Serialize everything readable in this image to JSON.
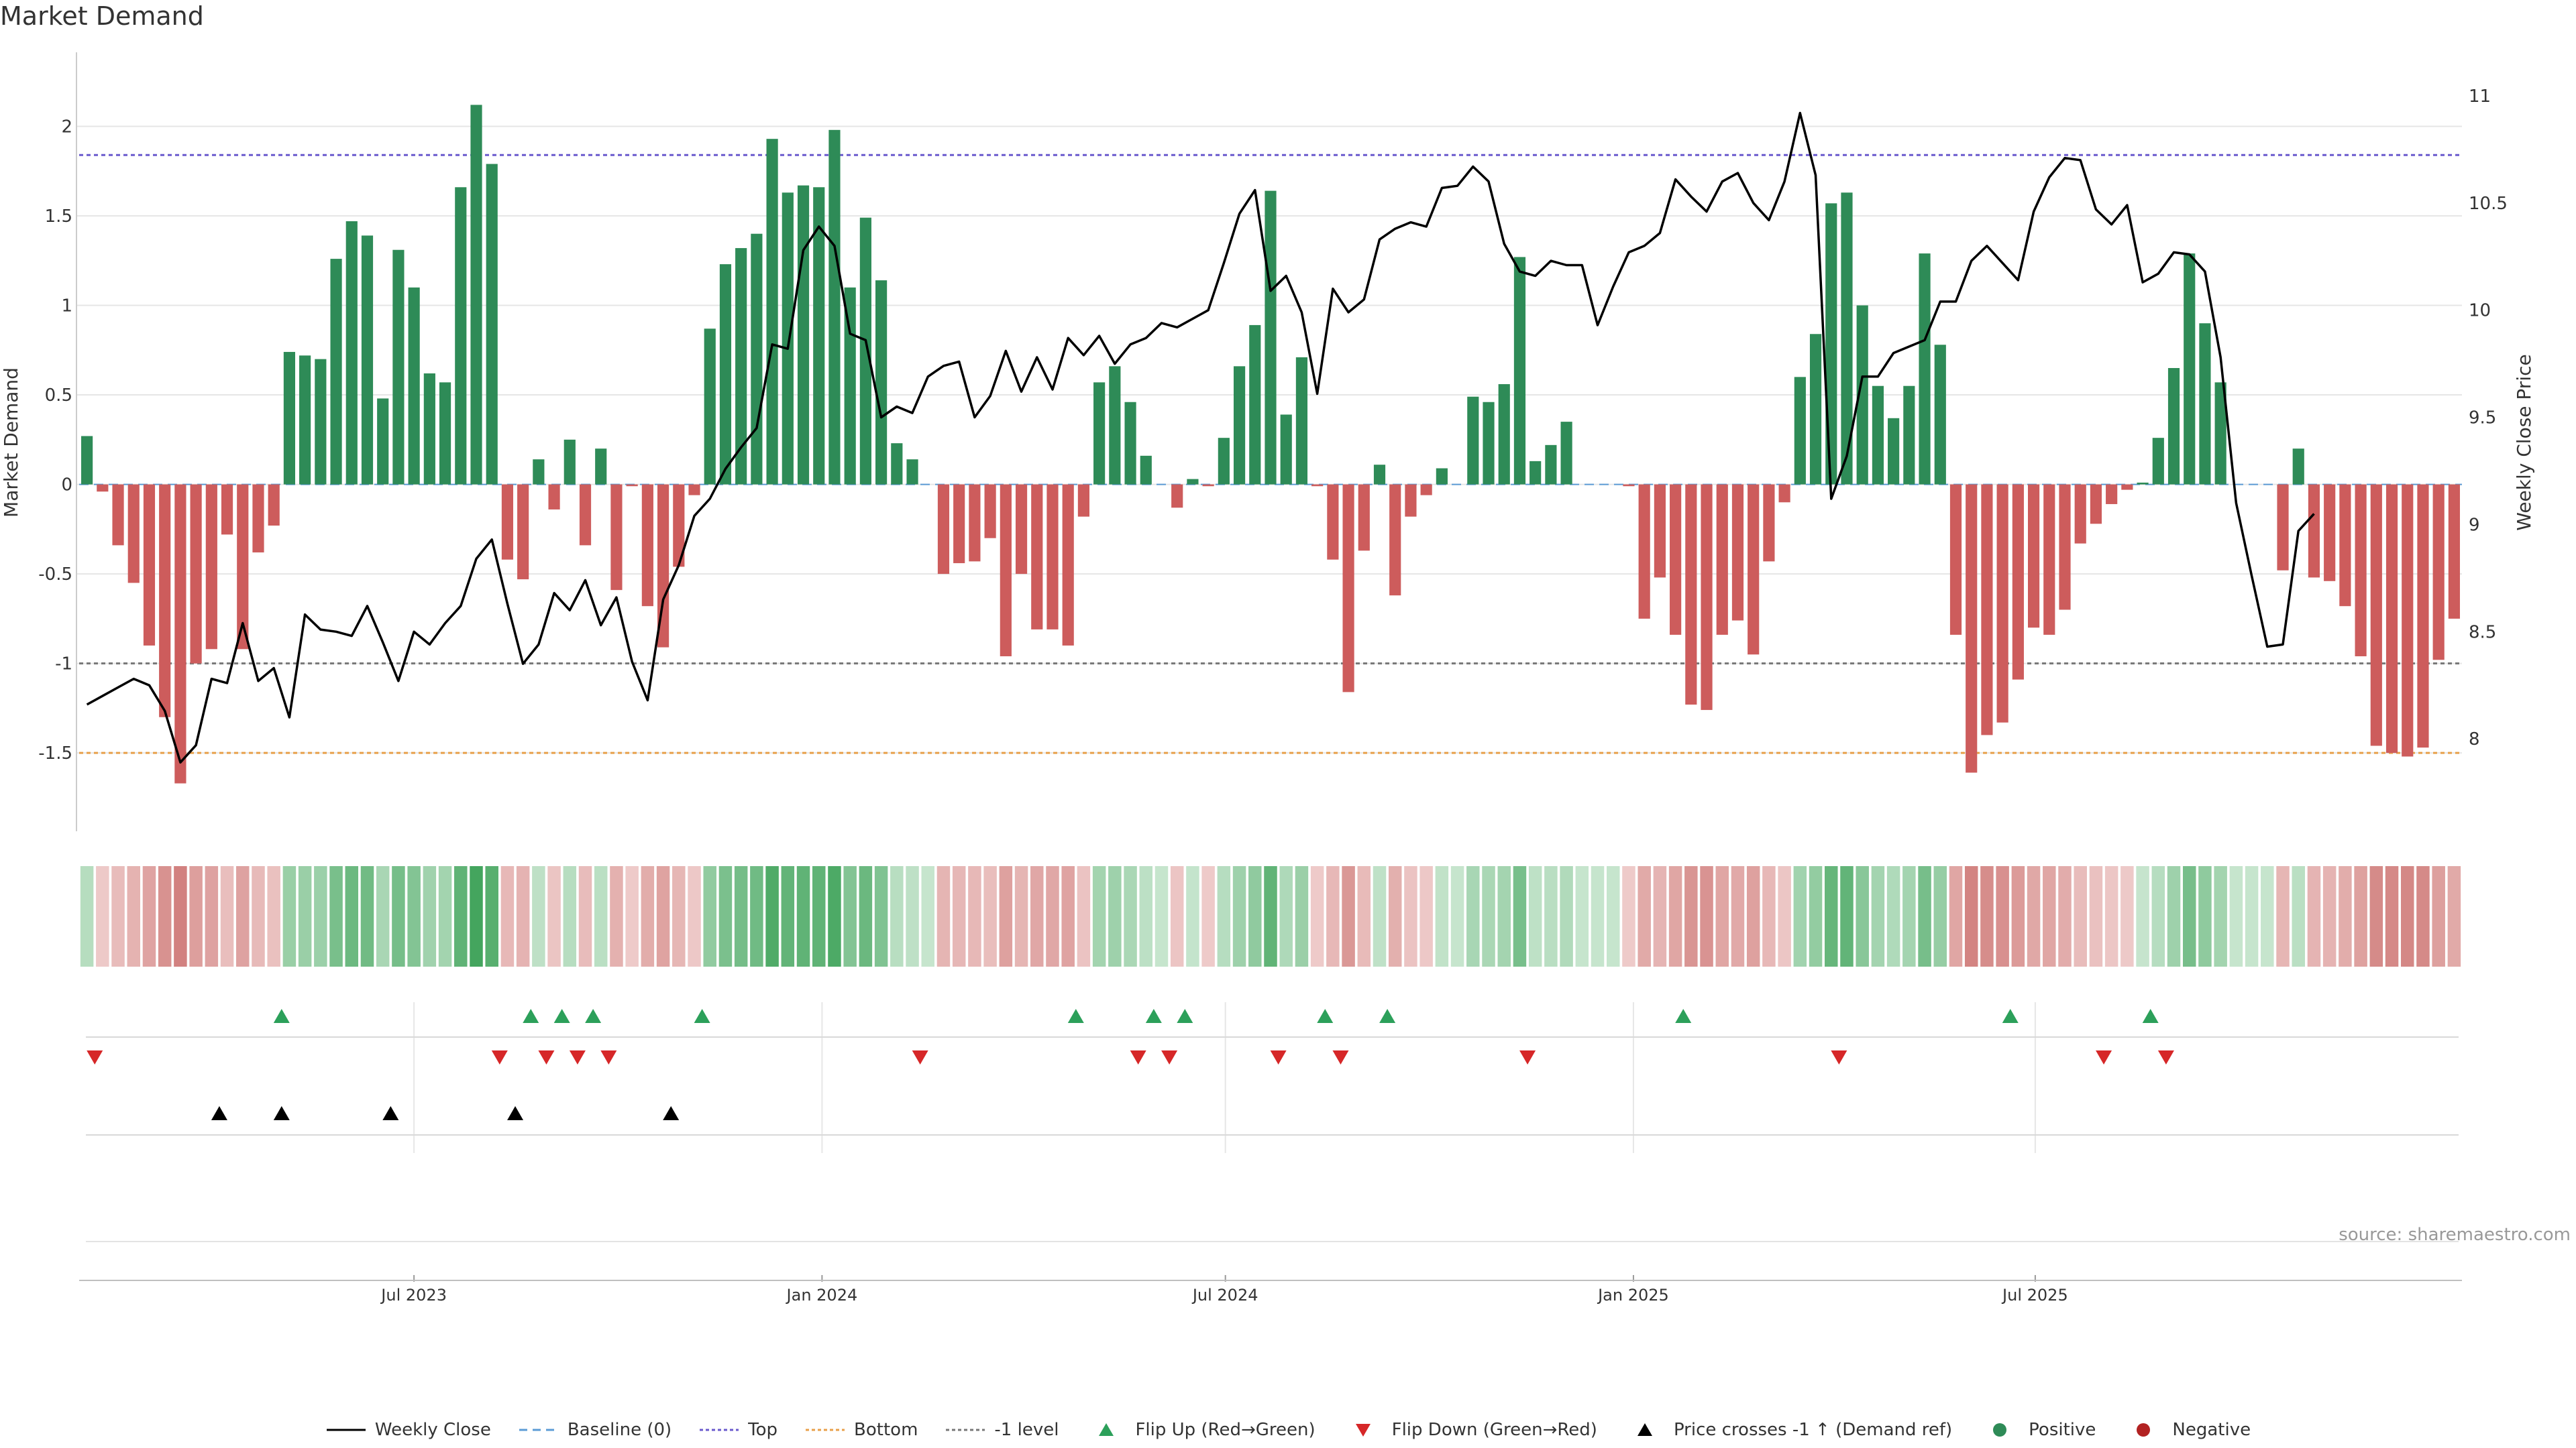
{
  "title": "Market Demand",
  "source": "source: sharemaestro.com",
  "colors": {
    "positive": "#2e8b57",
    "negative": "#cd5c5c",
    "price": "#000000",
    "top_line": "#6a5acd",
    "bottom_line": "#e8a04a",
    "minus1_line": "#777777",
    "baseline": "#5b9bd5",
    "flip_up": "#2ca05a",
    "flip_down": "#d62728",
    "cross": "#000000",
    "grid": "#e6e6e6"
  },
  "chart_data": {
    "type": "bar",
    "title": "Market Demand",
    "ylabel_left": "Market Demand",
    "ylabel_right": "Weekly Close Price",
    "ylim": [
      -1.9,
      2.35
    ],
    "yticks": [
      -1.5,
      -1,
      -0.5,
      0,
      0.5,
      1,
      1.5,
      2
    ],
    "ylim_right": [
      7.6,
      11.15
    ],
    "yticks_right": [
      8,
      8.5,
      9,
      9.5,
      10,
      10.5,
      11
    ],
    "x_ticks": [
      {
        "label": "Jul 2023",
        "week": 21.5
      },
      {
        "label": "Jan 2024",
        "week": 47.7
      },
      {
        "label": "Jul 2024",
        "week": 73.6
      },
      {
        "label": "Jan 2025",
        "week": 99.8
      },
      {
        "label": "Jul 2025",
        "week": 125.6
      }
    ],
    "reference_lines": {
      "top": 1.84,
      "bottom": -1.5,
      "minus1": -1.0,
      "baseline": 0
    },
    "demand": [
      0.27,
      -0.04,
      -0.34,
      -0.55,
      -0.9,
      -1.3,
      -1.67,
      -1.0,
      -0.92,
      -0.28,
      -0.92,
      -0.38,
      -0.23,
      0.74,
      0.72,
      0.7,
      1.26,
      1.47,
      1.39,
      0.48,
      1.31,
      1.1,
      0.62,
      0.57,
      1.66,
      2.12,
      1.79,
      -0.42,
      -0.53,
      0.14,
      -0.14,
      0.25,
      -0.34,
      0.2,
      -0.59,
      -0.01,
      -0.68,
      -0.91,
      -0.46,
      -0.06,
      0.87,
      1.23,
      1.32,
      1.4,
      1.93,
      1.63,
      1.67,
      1.66,
      1.98,
      1.1,
      1.49,
      1.14,
      0.23,
      0.14,
      0.0,
      -0.5,
      -0.44,
      -0.43,
      -0.3,
      -0.96,
      -0.5,
      -0.81,
      -0.81,
      -0.9,
      -0.18,
      0.57,
      0.66,
      0.46,
      0.16,
      0.0,
      -0.13,
      0.03,
      -0.01,
      0.26,
      0.66,
      0.89,
      1.64,
      0.39,
      0.71,
      -0.01,
      -0.42,
      -1.16,
      -0.37,
      0.11,
      -0.62,
      -0.18,
      -0.06,
      0.09,
      0.0,
      0.49,
      0.46,
      0.56,
      1.27,
      0.13,
      0.22,
      0.35,
      0.0,
      0.0,
      0.0,
      -0.01,
      -0.75,
      -0.52,
      -0.84,
      -1.23,
      -1.26,
      -0.84,
      -0.76,
      -0.95,
      -0.43,
      -0.1,
      0.6,
      0.84,
      1.57,
      1.63,
      1.0,
      0.55,
      0.37,
      0.55,
      1.29,
      0.78,
      -0.84,
      -1.61,
      -1.4,
      -1.33,
      -1.09,
      -0.8,
      -0.84,
      -0.7,
      -0.33,
      -0.22,
      -0.11,
      -0.03,
      0.01,
      0.26,
      0.65,
      1.29,
      0.9,
      0.57,
      0.0,
      0.0,
      0.0,
      -0.48,
      0.2,
      -0.52,
      -0.54,
      -0.68,
      -0.96,
      -1.46,
      -1.5,
      -1.52,
      -1.47,
      -0.98,
      -0.75
    ],
    "weekly_close": [
      8.16,
      8.2,
      8.24,
      8.28,
      8.25,
      8.13,
      7.89,
      7.97,
      8.28,
      8.26,
      8.54,
      8.27,
      8.33,
      8.1,
      8.58,
      8.51,
      8.5,
      8.48,
      8.62,
      8.45,
      8.27,
      8.5,
      8.44,
      8.54,
      8.62,
      8.84,
      8.93,
      8.63,
      8.35,
      8.44,
      8.68,
      8.6,
      8.74,
      8.53,
      8.66,
      8.36,
      8.18,
      8.65,
      8.81,
      9.04,
      9.12,
      9.26,
      9.36,
      9.45,
      9.84,
      9.82,
      10.28,
      10.39,
      10.3,
      9.89,
      9.86,
      9.5,
      9.55,
      9.52,
      9.69,
      9.74,
      9.76,
      9.5,
      9.6,
      9.81,
      9.62,
      9.78,
      9.63,
      9.87,
      9.79,
      9.88,
      9.75,
      9.84,
      9.87,
      9.94,
      9.92,
      9.96,
      10.0,
      10.22,
      10.45,
      10.56,
      10.09,
      10.16,
      9.99,
      9.61,
      10.1,
      9.99,
      10.05,
      10.33,
      10.38,
      10.41,
      10.39,
      10.57,
      10.58,
      10.67,
      10.6,
      10.31,
      10.18,
      10.16,
      10.23,
      10.21,
      10.21,
      9.93,
      10.11,
      10.27,
      10.3,
      10.36,
      10.61,
      10.53,
      10.46,
      10.6,
      10.64,
      10.5,
      10.42,
      10.6,
      10.92,
      10.63,
      9.12,
      9.32,
      9.69,
      9.69,
      9.8,
      9.83,
      9.86,
      10.04,
      10.04,
      10.23,
      10.3,
      10.22,
      10.14,
      10.46,
      10.62,
      10.71,
      10.7,
      10.47,
      10.4,
      10.49,
      10.13,
      10.17,
      10.27,
      10.26,
      10.18,
      9.78,
      9.1,
      8.76,
      8.43,
      8.44,
      8.97,
      9.05
    ],
    "heat_strip_note": "color intensity per week follows sign and magnitude of demand",
    "flip_up_weeks": [
      13,
      29,
      31,
      33,
      40,
      64,
      69,
      71,
      80,
      84,
      103,
      124,
      133
    ],
    "flip_down_weeks": [
      1,
      27,
      30,
      32,
      34,
      54,
      68,
      70,
      77,
      81,
      93,
      113,
      130,
      134
    ],
    "price_cross_weeks": [
      9,
      13,
      20,
      28,
      38
    ]
  },
  "legend": [
    {
      "label": "Weekly Close",
      "icon": "solid-line",
      "color": "#000000"
    },
    {
      "label": "Baseline (0)",
      "icon": "dashed-line",
      "color": "#5b9bd5"
    },
    {
      "label": "Top",
      "icon": "dotted-line",
      "color": "#6a5acd"
    },
    {
      "label": "Bottom",
      "icon": "dotted-line",
      "color": "#e8a04a"
    },
    {
      "label": "-1 level",
      "icon": "dotted-line",
      "color": "#777777"
    },
    {
      "label": "Flip Up (Red→Green)",
      "icon": "triangle-up",
      "color": "#2ca05a"
    },
    {
      "label": "Flip Down (Green→Red)",
      "icon": "triangle-down",
      "color": "#d62728"
    },
    {
      "label": "Price crosses -1 ↑ (Demand ref)",
      "icon": "triangle-up",
      "color": "#000000"
    },
    {
      "label": "Positive",
      "icon": "circle",
      "color": "#2e8b57"
    },
    {
      "label": "Negative",
      "icon": "circle",
      "color": "#b22222"
    }
  ]
}
